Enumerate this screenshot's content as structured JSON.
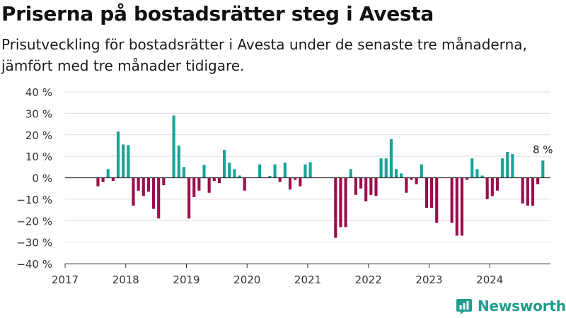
{
  "title": "Priserna på bostadsrätter steg i Avesta",
  "subtitle": "Prisutveckling för bostadsrätter i Avesta under de senaste tre månaderna, jämfört med tre månader tidigare.",
  "brand": {
    "name": "Newsworthy",
    "icon": "newsworthy-logo-icon",
    "color": "#1f9c8f"
  },
  "colors": {
    "positive": "#16a39a",
    "negative": "#9b0e4d",
    "grid": "#dddddd",
    "axis": "#333333"
  },
  "chart_data": {
    "type": "bar",
    "title": "Priserna på bostadsrätter steg i Avesta",
    "subtitle": "Prisutveckling för bostadsrätter i Avesta under de senaste tre månaderna, jämfört med tre månader tidigare.",
    "xlabel": "",
    "ylabel": "",
    "grid": true,
    "legend": "none",
    "x_domain": [
      "2017-01",
      "2025-01"
    ],
    "ylim": [
      -40,
      40
    ],
    "y_ticks": [
      40,
      30,
      20,
      10,
      0,
      -10,
      -20,
      -30,
      -40
    ],
    "y_tick_labels": [
      "40 %",
      "30 %",
      "20 %",
      "10 %",
      "0 %",
      "−10 %",
      "−20 %",
      "−30 %",
      "−40 %"
    ],
    "x_ticks": [
      "2017",
      "2018",
      "2019",
      "2020",
      "2021",
      "2022",
      "2023",
      "2024"
    ],
    "annotation": {
      "x": "2024-11",
      "text": "8 %"
    },
    "series": [
      {
        "x": [
          "2017-07",
          "2017-08",
          "2017-09",
          "2017-10",
          "2017-11",
          "2017-12",
          "2018-01",
          "2018-02",
          "2018-03",
          "2018-04",
          "2018-05",
          "2018-06",
          "2018-07",
          "2018-08",
          "2018-09",
          "2018-10",
          "2018-11",
          "2018-12",
          "2019-01",
          "2019-02",
          "2019-03",
          "2019-04",
          "2019-05",
          "2019-06",
          "2019-07",
          "2019-08",
          "2019-09",
          "2019-10",
          "2019-11",
          "2019-12",
          "2020-01",
          "2020-02",
          "2020-03",
          "2020-04",
          "2020-05",
          "2020-06",
          "2020-07",
          "2020-08",
          "2020-09",
          "2020-10",
          "2020-11",
          "2020-12",
          "2021-01",
          "2021-02",
          "2021-03",
          "2021-04",
          "2021-05",
          "2021-06",
          "2021-07",
          "2021-08",
          "2021-09",
          "2021-10",
          "2021-11",
          "2021-12",
          "2022-01",
          "2022-02",
          "2022-03",
          "2022-04",
          "2022-05",
          "2022-06",
          "2022-07",
          "2022-08",
          "2022-09",
          "2022-10",
          "2022-11",
          "2022-12",
          "2023-01",
          "2023-02",
          "2023-03",
          "2023-04",
          "2023-05",
          "2023-06",
          "2023-07",
          "2023-08",
          "2023-09",
          "2023-10",
          "2023-11",
          "2023-12",
          "2024-01",
          "2024-02",
          "2024-03",
          "2024-04",
          "2024-05",
          "2024-06",
          "2024-07",
          "2024-08",
          "2024-09",
          "2024-10",
          "2024-11"
        ],
        "values": [
          -4,
          -2,
          4,
          -1.5,
          21.5,
          15.5,
          15.2,
          -13,
          -6,
          -8.5,
          -6.5,
          -14.5,
          -19,
          -3.5,
          0,
          29,
          15,
          5,
          -19,
          -9,
          -6,
          6,
          -7,
          -1.5,
          -2.5,
          13,
          7,
          4,
          1,
          -6,
          0,
          0,
          6.2,
          0,
          0.8,
          6.2,
          -2,
          7,
          -5.5,
          -1,
          -4,
          6.2,
          7.2,
          0,
          0,
          0,
          0,
          -28,
          -23,
          -23,
          4,
          -8,
          -5,
          -11,
          -8,
          -8.5,
          9,
          9,
          18,
          4,
          2,
          -7,
          -1,
          -3,
          6.2,
          -14,
          -14,
          -21,
          0,
          0,
          -21,
          -27,
          -27,
          -1,
          9,
          4,
          1,
          -10,
          -8.5,
          -6,
          9,
          12,
          11,
          0,
          -12,
          -13,
          -13,
          -3,
          8
        ]
      }
    ]
  }
}
